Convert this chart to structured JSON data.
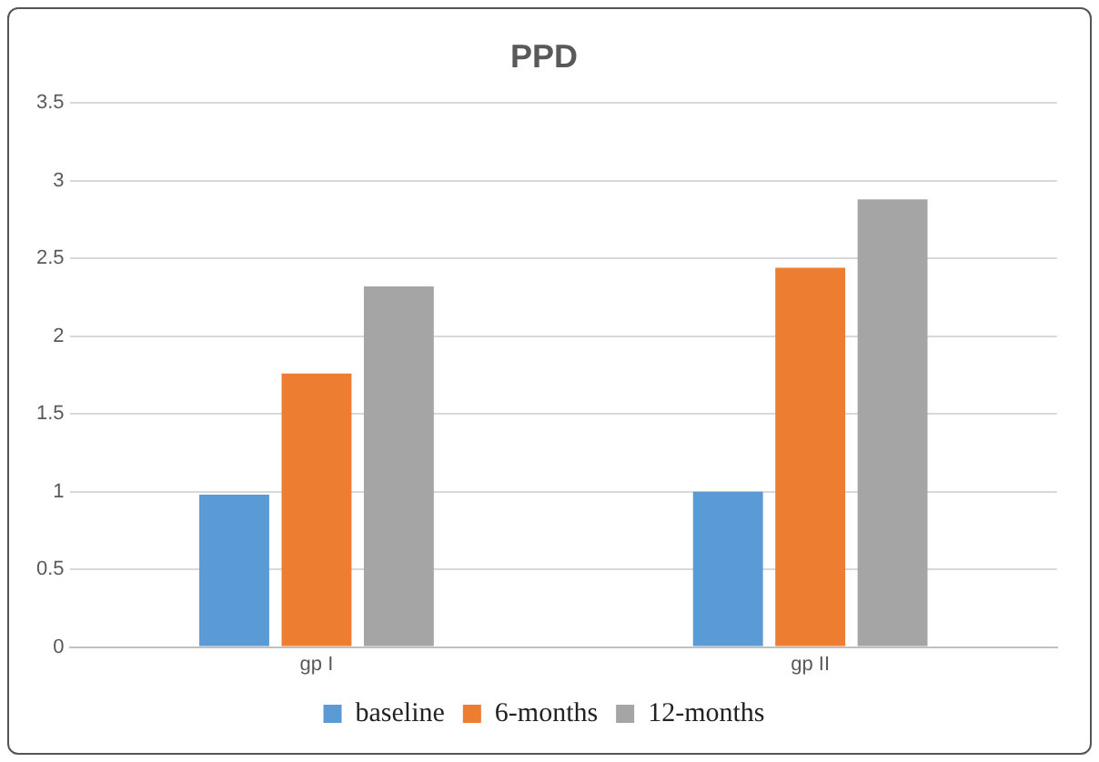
{
  "chart_data": {
    "type": "bar",
    "title": "PPD",
    "categories": [
      "gp I",
      "gp II"
    ],
    "series": [
      {
        "name": "baseline",
        "color": "#5b9bd5",
        "values": [
          0.98,
          1.0
        ]
      },
      {
        "name": "6-months",
        "color": "#ed7d31",
        "values": [
          1.76,
          2.44
        ]
      },
      {
        "name": "12-months",
        "color": "#a5a5a5",
        "values": [
          2.32,
          2.88
        ]
      }
    ],
    "ylim": [
      0,
      3.5
    ],
    "yticks": [
      0,
      0.5,
      1,
      1.5,
      2,
      2.5,
      3,
      3.5
    ],
    "grid": "y",
    "legend": "bottom"
  }
}
